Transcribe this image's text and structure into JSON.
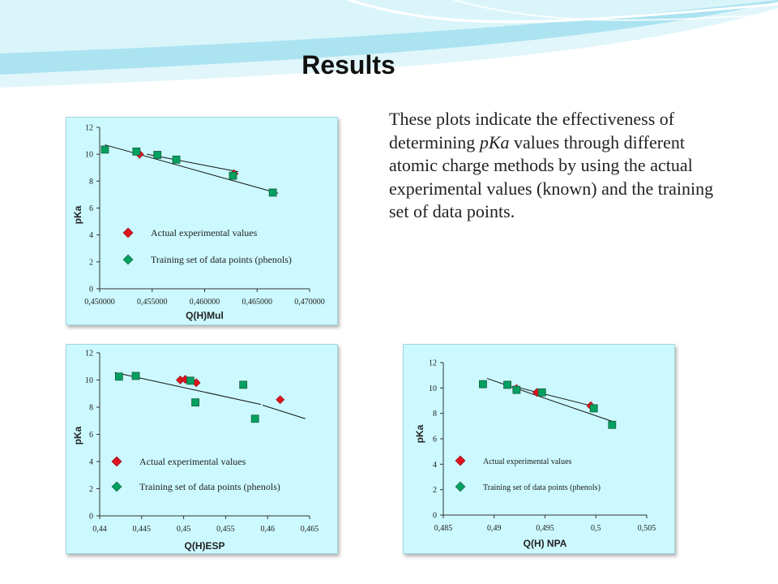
{
  "slide": {
    "title": "Results",
    "body_text_parts": [
      "These plots indicate the effectiveness of determining ",
      "pKa",
      " values through different atomic charge methods by using the actual experimental values (known) and the training set of data points."
    ]
  },
  "colors": {
    "background": "#ffffff",
    "panel": "#ccf9ff",
    "actual_marker": "#e0141e",
    "training_marker": "#00a060",
    "marker_outline": "#1e5f3c",
    "trendline": "#111111",
    "wave_light": "#c8eef8",
    "wave_mid": "#7fd3ea"
  },
  "chart_data": [
    {
      "type": "scatter",
      "xlabel": "Q(H)Mul",
      "ylabel": "pKa",
      "x_ticks": [
        "0,450000",
        "0,455000",
        "0,460000",
        "0,465000",
        "0,470000"
      ],
      "y_ticks": [
        "0",
        "2",
        "4",
        "6",
        "8",
        "10",
        "12"
      ],
      "xlim": [
        0.45,
        0.47
      ],
      "ylim": [
        0,
        12
      ],
      "grid": false,
      "legend_position": "inside-left",
      "legend": [
        "Actual experimental values",
        "Training set of data points (phenols)"
      ],
      "series": [
        {
          "name": "Actual experimental values",
          "marker": "diamond",
          "points": [
            [
              0.4538,
              10.0
            ],
            [
              0.4628,
              8.55
            ]
          ]
        },
        {
          "name": "Training set of data points (phenols)",
          "marker": "square",
          "points": [
            [
              0.4505,
              10.35
            ],
            [
              0.4535,
              10.2
            ],
            [
              0.4555,
              9.95
            ],
            [
              0.4573,
              9.6
            ],
            [
              0.4627,
              8.4
            ],
            [
              0.4665,
              7.15
            ]
          ]
        }
      ],
      "trendlines": [
        [
          [
            0.4505,
            10.7
          ],
          [
            0.467,
            7.1
          ]
        ],
        [
          [
            0.4545,
            10.0
          ],
          [
            0.4632,
            8.7
          ]
        ]
      ]
    },
    {
      "type": "scatter",
      "xlabel": "Q(H)ESP",
      "ylabel": "pKa",
      "x_ticks": [
        "0,44",
        "0,445",
        "0,45",
        "0,455",
        "0,46",
        "0,465"
      ],
      "y_ticks": [
        "0",
        "2",
        "4",
        "6",
        "8",
        "10",
        "12"
      ],
      "xlim": [
        0.44,
        0.465
      ],
      "ylim": [
        0,
        12
      ],
      "grid": false,
      "legend_position": "inside-left",
      "legend": [
        "Actual experimental values",
        "Training set of data points (phenols)"
      ],
      "series": [
        {
          "name": "Actual experimental values",
          "marker": "diamond",
          "points": [
            [
              0.4496,
              10.0
            ],
            [
              0.4502,
              10.05
            ],
            [
              0.4515,
              9.8
            ],
            [
              0.4615,
              8.55
            ]
          ]
        },
        {
          "name": "Training set of data points (phenols)",
          "marker": "square",
          "points": [
            [
              0.4423,
              10.25
            ],
            [
              0.4443,
              10.3
            ],
            [
              0.4508,
              9.95
            ],
            [
              0.4514,
              8.35
            ],
            [
              0.4571,
              9.65
            ],
            [
              0.4585,
              7.15
            ]
          ]
        }
      ],
      "trendlines": [
        [
          [
            0.4418,
            10.55
          ],
          [
            0.4592,
            8.2
          ]
        ],
        [
          [
            0.4594,
            8.15
          ],
          [
            0.4645,
            7.15
          ]
        ]
      ]
    },
    {
      "type": "scatter",
      "xlabel": "Q(H) NPA",
      "ylabel": "pKa",
      "x_ticks": [
        "0,485",
        "0,49",
        "0,495",
        "0,5",
        "0,505"
      ],
      "y_ticks": [
        "0",
        "2",
        "4",
        "6",
        "8",
        "10",
        "12"
      ],
      "xlim": [
        0.485,
        0.505
      ],
      "ylim": [
        0,
        12
      ],
      "grid": false,
      "legend_position": "inside-left",
      "legend": [
        "Actual experimental values",
        "Training set of data points (phenols)"
      ],
      "series": [
        {
          "name": "Actual experimental values",
          "marker": "diamond",
          "points": [
            [
              0.4922,
              9.95
            ],
            [
              0.4942,
              9.65
            ],
            [
              0.4995,
              8.6
            ]
          ]
        },
        {
          "name": "Training set of data points (phenols)",
          "marker": "square",
          "points": [
            [
              0.4889,
              10.3
            ],
            [
              0.4913,
              10.25
            ],
            [
              0.4922,
              9.85
            ],
            [
              0.4947,
              9.65
            ],
            [
              0.4998,
              8.4
            ],
            [
              0.5016,
              7.1
            ]
          ]
        }
      ],
      "trendlines": [
        [
          [
            0.4893,
            10.75
          ],
          [
            0.5017,
            7.35
          ]
        ],
        [
          [
            0.4918,
            10.15
          ],
          [
            0.4998,
            8.55
          ]
        ]
      ]
    }
  ]
}
